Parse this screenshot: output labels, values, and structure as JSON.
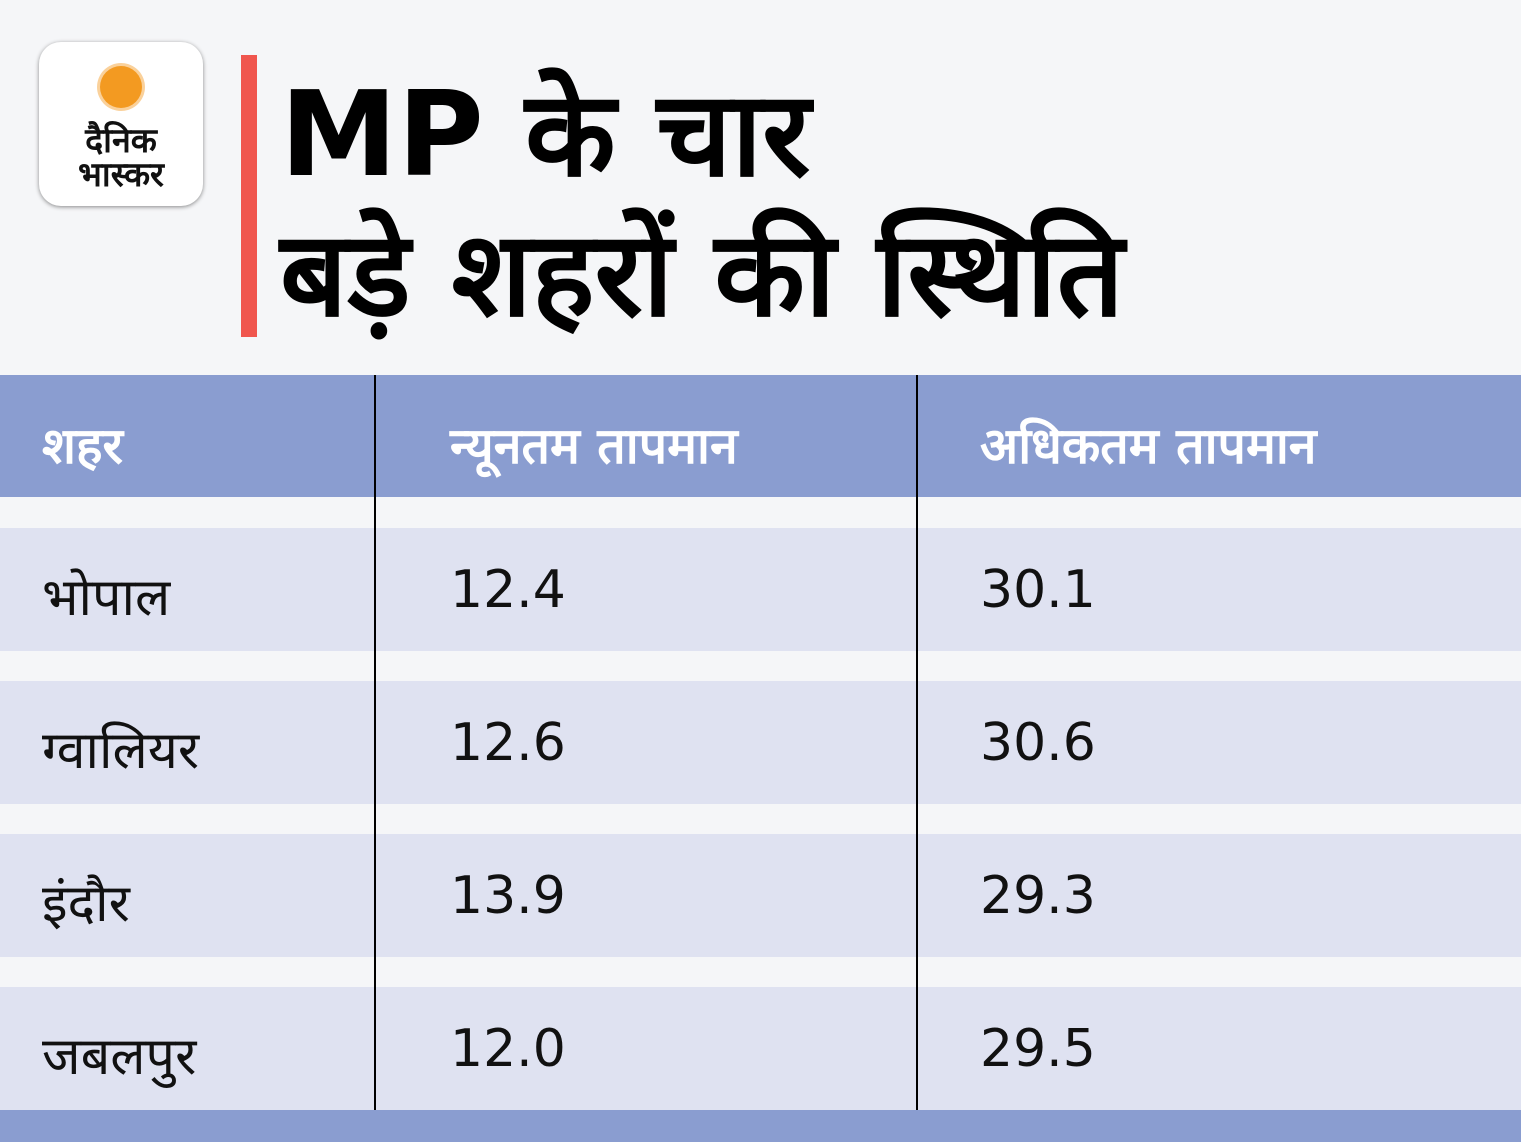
{
  "logo": {
    "line1": "दैनिक",
    "line2": "भास्कर"
  },
  "title": {
    "line1": "MP के चार",
    "line2": "बड़े शहरों की स्थिति"
  },
  "colors": {
    "header": "#8a9dd0",
    "row": "#dfe2f1",
    "accent": "#f0564e",
    "background": "#f5f6f8",
    "sun": "#f39a21"
  },
  "chart_data": {
    "type": "table",
    "columns": [
      "शहर",
      "न्यूनतम तापमान",
      "अधिकतम तापमान"
    ],
    "rows": [
      [
        "भोपाल",
        "12.4",
        "30.1"
      ],
      [
        "ग्वालियर",
        "12.6",
        "30.6"
      ],
      [
        "इंदौर",
        "13.9",
        "29.3"
      ],
      [
        "जबलपुर",
        "12.0",
        "29.5"
      ]
    ]
  }
}
